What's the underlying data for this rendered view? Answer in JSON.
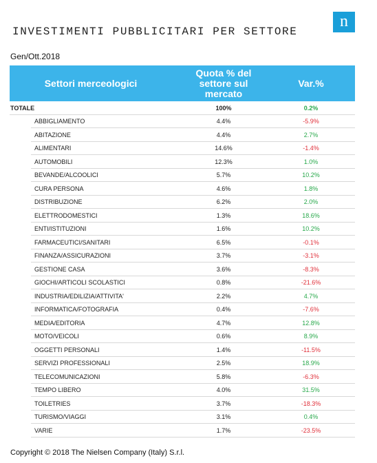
{
  "header": {
    "title": "INVESTIMENTI PUBBLICITARI PER SETTORE",
    "logo": "n",
    "period": "Gen/Ott.2018"
  },
  "table": {
    "columns": [
      "Settori merceologici",
      "Quota % del settore sul mercato",
      "Var.%"
    ],
    "total": [
      "TOTALE",
      "100%",
      "0.2%"
    ],
    "rows": [
      [
        "ABBIGLIAMENTO",
        "4.4%",
        "-5.9%"
      ],
      [
        "ABITAZIONE",
        "4.4%",
        "2.7%"
      ],
      [
        "ALIMENTARI",
        "14.6%",
        "-1.4%"
      ],
      [
        "AUTOMOBILI",
        "12.3%",
        "1.0%"
      ],
      [
        "BEVANDE/ALCOOLICI",
        "5.7%",
        "10.2%"
      ],
      [
        "CURA PERSONA",
        "4.6%",
        "1.8%"
      ],
      [
        "DISTRIBUZIONE",
        "6.2%",
        "2.0%"
      ],
      [
        "ELETTRODOMESTICI",
        "1.3%",
        "18.6%"
      ],
      [
        "ENTI/ISTITUZIONI",
        "1.6%",
        "10.2%"
      ],
      [
        "FARMACEUTICI/SANITARI",
        "6.5%",
        "-0.1%"
      ],
      [
        "FINANZA/ASSICURAZIONI",
        "3.7%",
        "-3.1%"
      ],
      [
        "GESTIONE CASA",
        "3.6%",
        "-8.3%"
      ],
      [
        "GIOCHI/ARTICOLI SCOLASTICI",
        "0.8%",
        "-21.6%"
      ],
      [
        "INDUSTRIA/EDILIZIA/ATTIVITA'",
        "2.2%",
        "4.7%"
      ],
      [
        "INFORMATICA/FOTOGRAFIA",
        "0.4%",
        "-7.6%"
      ],
      [
        "MEDIA/EDITORIA",
        "4.7%",
        "12.8%"
      ],
      [
        "MOTO/VEICOLI",
        "0.6%",
        "8.9%"
      ],
      [
        "OGGETTI PERSONALI",
        "1.4%",
        "-11.5%"
      ],
      [
        "SERVIZI PROFESSIONALI",
        "2.5%",
        "18.9%"
      ],
      [
        "TELECOMUNICAZIONI",
        "5.8%",
        "-6.3%"
      ],
      [
        "TEMPO LIBERO",
        "4.0%",
        "31.5%"
      ],
      [
        "TOILETRIES",
        "3.7%",
        "-18.3%"
      ],
      [
        "TURISMO/VIAGGI",
        "3.1%",
        "0.4%"
      ],
      [
        "VARIE",
        "1.7%",
        "-23.5%"
      ]
    ]
  },
  "footer": {
    "copyright": "Copyright © 2018 The Nielsen Company (Italy) S.r.l."
  }
}
